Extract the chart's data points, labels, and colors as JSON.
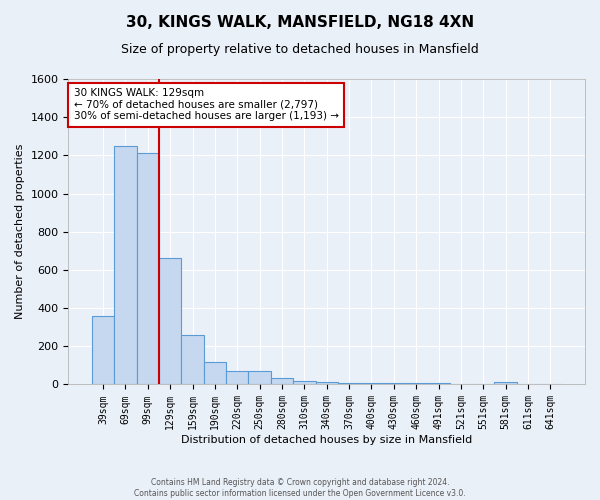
{
  "title": "30, KINGS WALK, MANSFIELD, NG18 4XN",
  "subtitle": "Size of property relative to detached houses in Mansfield",
  "xlabel": "Distribution of detached houses by size in Mansfield",
  "ylabel": "Number of detached properties",
  "footnote": "Contains HM Land Registry data © Crown copyright and database right 2024.\nContains public sector information licensed under the Open Government Licence v3.0.",
  "bar_labels": [
    "39sqm",
    "69sqm",
    "99sqm",
    "129sqm",
    "159sqm",
    "190sqm",
    "220sqm",
    "250sqm",
    "280sqm",
    "310sqm",
    "340sqm",
    "370sqm",
    "400sqm",
    "430sqm",
    "460sqm",
    "491sqm",
    "521sqm",
    "551sqm",
    "581sqm",
    "611sqm",
    "641sqm"
  ],
  "bar_values": [
    360,
    1250,
    1210,
    660,
    260,
    120,
    70,
    70,
    35,
    20,
    15,
    10,
    10,
    10,
    10,
    10,
    0,
    0,
    15,
    0,
    0
  ],
  "bar_color": "#c5d8f0",
  "bar_edge_color": "#5b9bd5",
  "ylim": [
    0,
    1600
  ],
  "yticks": [
    0,
    200,
    400,
    600,
    800,
    1000,
    1200,
    1400,
    1600
  ],
  "red_line_bar_index": 2,
  "annotation_text": "30 KINGS WALK: 129sqm\n← 70% of detached houses are smaller (2,797)\n30% of semi-detached houses are larger (1,193) →",
  "bg_color": "#eaf0f8",
  "grid_color": "#ffffff",
  "annotation_box_color": "#ffffff",
  "annotation_box_edge": "#cc0000",
  "title_fontsize": 11,
  "subtitle_fontsize": 9,
  "ylabel_fontsize": 8,
  "xlabel_fontsize": 8,
  "tick_fontsize": 7,
  "footnote_fontsize": 5.5
}
